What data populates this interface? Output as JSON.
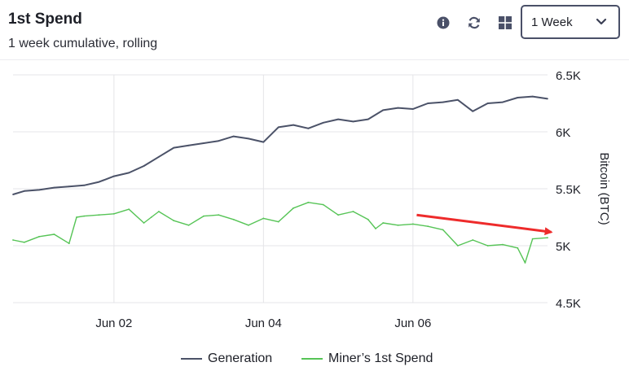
{
  "header": {
    "title": "1st Spend",
    "subtitle": "1 week cumulative, rolling"
  },
  "toolbar": {
    "info_icon": "info-icon",
    "refresh_icon": "refresh-icon",
    "grid_icon": "grid-icon",
    "range_selected": "1 Week"
  },
  "colors": {
    "generation": "#4b5268",
    "miner_spend": "#56c456",
    "arrow": "#ee2b2b",
    "gridline": "#e4e4e8"
  },
  "chart_data": {
    "type": "line",
    "xlabel": "",
    "ylabel": "Bitcoin (BTC)",
    "y_axis_side": "right",
    "ylim": [
      4500,
      6500
    ],
    "y_ticks": [
      "6.5K",
      "6K",
      "5.5K",
      "5K",
      "4.5K"
    ],
    "y_tick_values": [
      6500,
      6000,
      5500,
      5000,
      4500
    ],
    "x_ticks": [
      "Jun 02",
      "Jun 04",
      "Jun 06"
    ],
    "x_tick_days": [
      2,
      4,
      6
    ],
    "xlim": [
      0.65,
      7.8
    ],
    "grid": true,
    "legend_position": "bottom-center",
    "series": [
      {
        "name": "Generation",
        "color": "#4b5268",
        "x": [
          0.65,
          0.8,
          1.0,
          1.2,
          1.4,
          1.6,
          1.8,
          2.0,
          2.2,
          2.4,
          2.6,
          2.8,
          3.0,
          3.2,
          3.4,
          3.6,
          3.8,
          4.0,
          4.2,
          4.4,
          4.6,
          4.8,
          5.0,
          5.2,
          5.4,
          5.6,
          5.8,
          6.0,
          6.2,
          6.4,
          6.6,
          6.8,
          7.0,
          7.2,
          7.4,
          7.6,
          7.8
        ],
        "values": [
          5450,
          5480,
          5490,
          5510,
          5520,
          5530,
          5560,
          5610,
          5640,
          5700,
          5780,
          5860,
          5880,
          5900,
          5920,
          5960,
          5940,
          5910,
          6040,
          6060,
          6030,
          6080,
          6110,
          6090,
          6110,
          6190,
          6210,
          6200,
          6250,
          6260,
          6280,
          6180,
          6250,
          6260,
          6300,
          6310,
          6290
        ]
      },
      {
        "name": "Miner's 1st Spend",
        "color": "#56c456",
        "x": [
          0.65,
          0.8,
          1.0,
          1.2,
          1.4,
          1.5,
          1.6,
          1.8,
          2.0,
          2.2,
          2.4,
          2.5,
          2.6,
          2.8,
          3.0,
          3.2,
          3.4,
          3.6,
          3.8,
          4.0,
          4.2,
          4.4,
          4.6,
          4.8,
          5.0,
          5.2,
          5.4,
          5.5,
          5.6,
          5.8,
          6.0,
          6.2,
          6.4,
          6.6,
          6.8,
          7.0,
          7.2,
          7.4,
          7.5,
          7.6,
          7.8
        ],
        "values": [
          5050,
          5030,
          5080,
          5100,
          5020,
          5250,
          5260,
          5270,
          5280,
          5320,
          5200,
          5250,
          5300,
          5220,
          5180,
          5260,
          5270,
          5230,
          5180,
          5240,
          5210,
          5330,
          5380,
          5360,
          5270,
          5300,
          5230,
          5150,
          5200,
          5180,
          5190,
          5170,
          5140,
          5000,
          5050,
          5000,
          5010,
          4980,
          4850,
          5060,
          5070
        ]
      }
    ],
    "annotations": [
      {
        "type": "arrow",
        "from": [
          6.05,
          5270
        ],
        "to": [
          7.85,
          5120
        ]
      }
    ]
  },
  "legend": {
    "items": [
      "Generation",
      "Miner’s 1st Spend"
    ]
  }
}
